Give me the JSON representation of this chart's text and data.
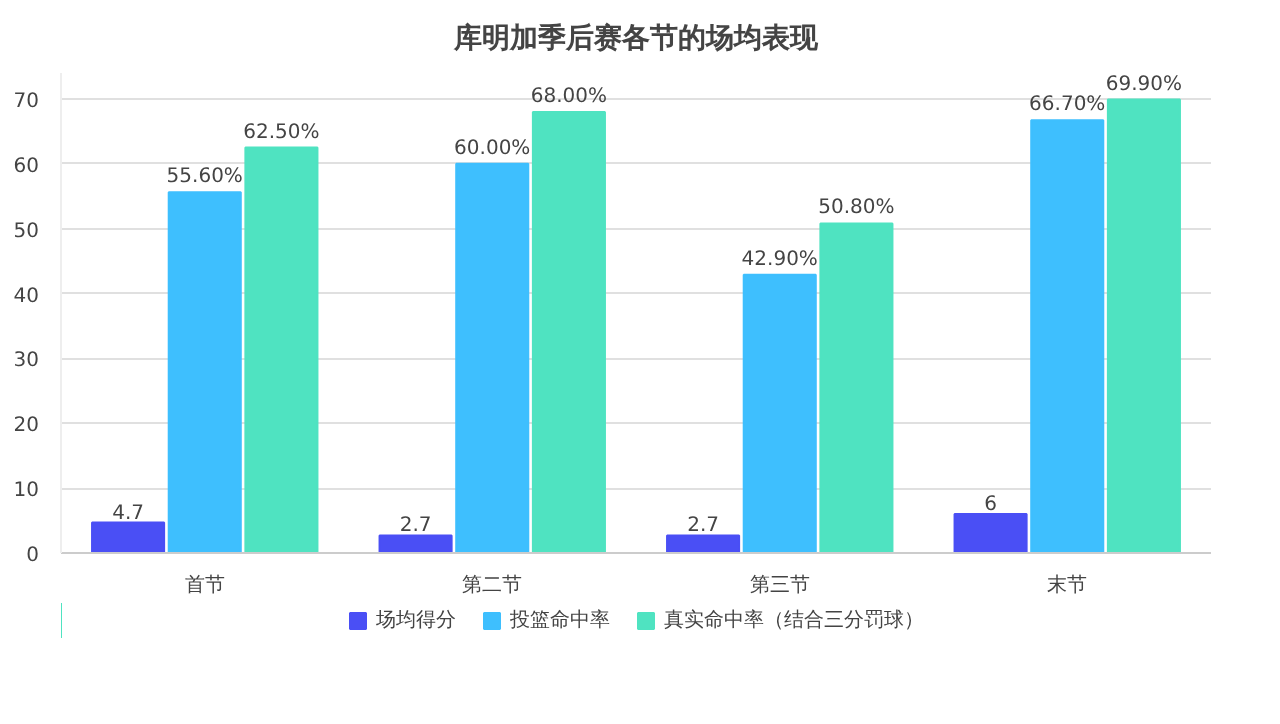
{
  "chart_data": {
    "type": "bar",
    "title": "库明加季后赛各节的场均表现",
    "categories": [
      "首节",
      "第二节",
      "第三节",
      "末节"
    ],
    "series": [
      {
        "name": "场均得分",
        "color": "#4a4ff5",
        "values": [
          4.7,
          2.7,
          2.7,
          6
        ],
        "value_labels": [
          "4.7",
          "2.7",
          "2.7",
          "6"
        ]
      },
      {
        "name": "投篮命中率",
        "color": "#3ebffe",
        "values": [
          55.6,
          60.0,
          42.9,
          66.7
        ],
        "value_labels": [
          "55.60%",
          "60.00%",
          "42.90%",
          "66.70%"
        ]
      },
      {
        "name": "真实命中率（结合三分罚球）",
        "color": "#4fe3c1",
        "values": [
          62.5,
          68.0,
          50.8,
          69.9
        ],
        "value_labels": [
          "62.50%",
          "68.00%",
          "50.80%",
          "69.90%"
        ]
      }
    ],
    "ylim": [
      0,
      74
    ],
    "yticks": [
      0,
      10,
      20,
      30,
      40,
      50,
      60,
      70
    ],
    "grid": "y",
    "legend": "bottom"
  }
}
